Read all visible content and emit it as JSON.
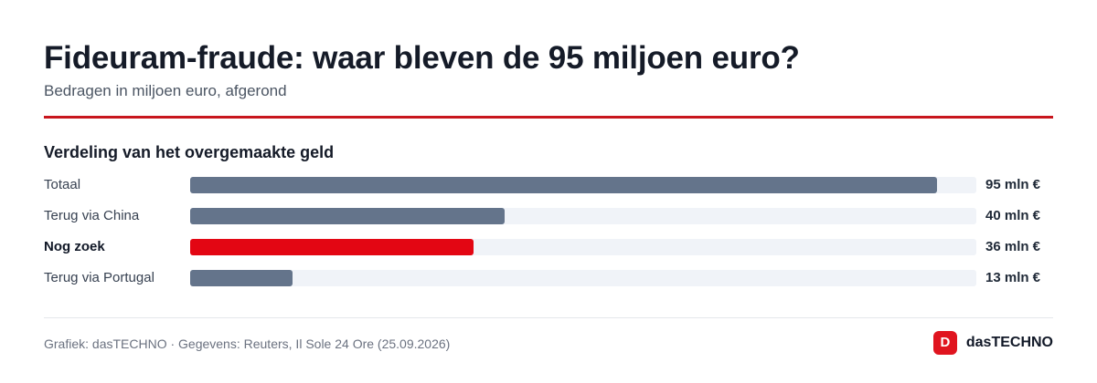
{
  "header": {
    "title": "Fideuram-fraude: waar bleven de 95 miljoen euro?",
    "subtitle": "Bedragen in miljoen euro, afgerond"
  },
  "section": {
    "title": "Verdeling van het overgemaakte geld"
  },
  "chart_data": {
    "type": "bar",
    "orientation": "horizontal",
    "title": "Verdeling van het overgemaakte geld",
    "categories": [
      "Totaal",
      "Terug via China",
      "Nog zoek",
      "Terug via Portugal"
    ],
    "values": [
      95,
      40,
      36,
      13
    ],
    "value_labels": [
      "95 mln €",
      "40 mln €",
      "36 mln €",
      "13 mln €"
    ],
    "highlight": [
      false,
      false,
      true,
      false
    ],
    "bar_colors": [
      "#64748b",
      "#64748b",
      "#e30613",
      "#64748b"
    ],
    "track_color": "#f0f3f8",
    "xlim": [
      0,
      100
    ],
    "grid": false
  },
  "footer": {
    "source": "Grafiek: dasTECHNO · Gegevens: Reuters, Il Sole 24 Ore (25.09.2026)",
    "brand_icon": "D",
    "brand_name": "dasTECHNO"
  },
  "colors": {
    "accent": "#c8161d",
    "brand": "#e0141f"
  }
}
